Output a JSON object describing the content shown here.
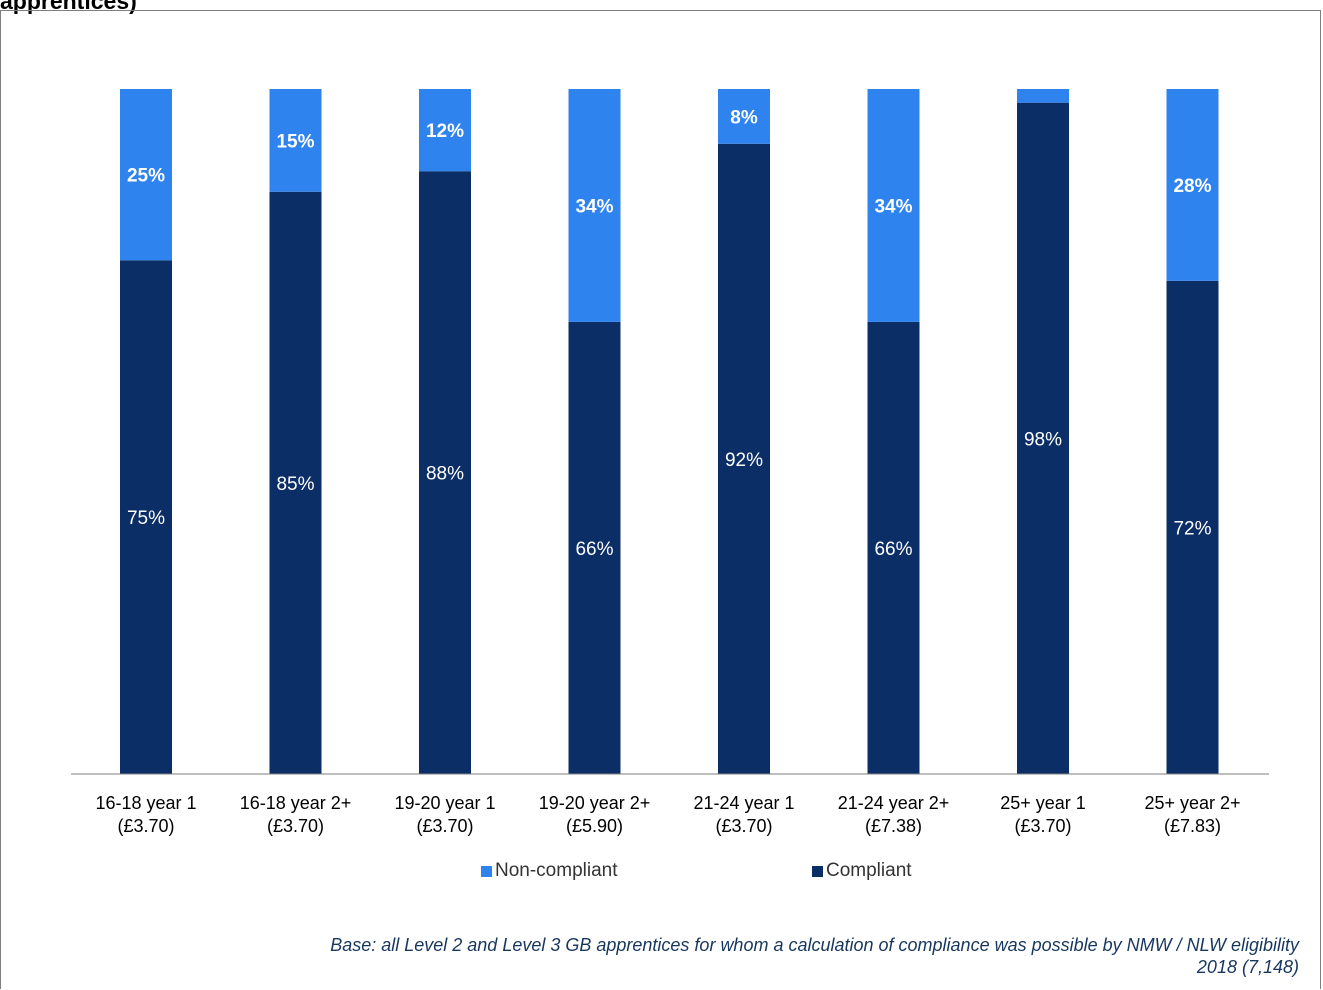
{
  "title": "apprentices)",
  "chart_data": {
    "type": "bar",
    "stacked": true,
    "categories": [
      [
        "16-18 year 1",
        "(£3.70)"
      ],
      [
        "16-18 year 2+",
        "(£3.70)"
      ],
      [
        "19-20 year 1",
        "(£3.70)"
      ],
      [
        "19-20 year 2+",
        "(£5.90)"
      ],
      [
        "21-24 year 1",
        "(£3.70)"
      ],
      [
        "21-24 year 2+",
        "(£7.38)"
      ],
      [
        "25+ year 1",
        "(£3.70)"
      ],
      [
        "25+ year 2+",
        "(£7.83)"
      ]
    ],
    "series": [
      {
        "name": "Compliant",
        "values": [
          75,
          85,
          88,
          66,
          92,
          66,
          98,
          72
        ],
        "labels": [
          "75%",
          "85%",
          "88%",
          "66%",
          "92%",
          "66%",
          "98%",
          "72%"
        ],
        "color": "#0b2e66"
      },
      {
        "name": "Non-compliant",
        "values": [
          25,
          15,
          12,
          34,
          8,
          34,
          2,
          28
        ],
        "labels": [
          "25%",
          "15%",
          "12%",
          "34%",
          "8%",
          "34%",
          "",
          "28%"
        ],
        "color": "#2f83ef"
      }
    ],
    "ylim": [
      0,
      100
    ],
    "grid": false,
    "legend_position": "bottom",
    "legend_order": [
      "Non-compliant",
      "Compliant"
    ]
  },
  "note": [
    "Base: all Level 2 and Level 3 GB apprentices for whom a calculation of compliance was possible by NMW / NLW eligibility",
    "2018 (7,148)"
  ]
}
